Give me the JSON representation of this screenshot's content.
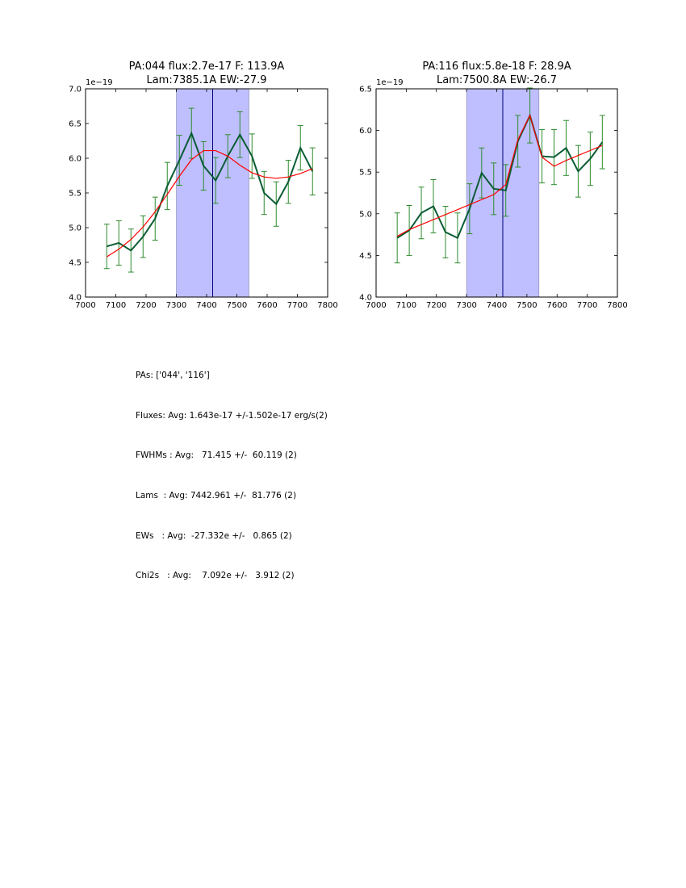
{
  "colors": {
    "data_line": "#0a5c34",
    "error_bar": "#2e8b2e",
    "model_line": "#ff0000",
    "shade": "#bfbfff",
    "center_line": "#000080"
  },
  "chart_data": [
    {
      "type": "line",
      "title": [
        "PA:044 flux:2.7e-17 F: 113.9A",
        "Lam:7385.1A EW:-27.9"
      ],
      "offset_label": "1e−19",
      "xlim": [
        7000,
        7800
      ],
      "ylim": [
        4.0,
        7.0
      ],
      "xticks": [
        7000,
        7100,
        7200,
        7300,
        7400,
        7500,
        7600,
        7700,
        7800
      ],
      "xtick_labels": [
        "7000",
        "7100",
        "7200",
        "7300",
        "7400",
        "7500",
        "7600",
        "7700",
        "7800"
      ],
      "yticks": [
        4.0,
        4.5,
        5.0,
        5.5,
        6.0,
        6.5,
        7.0
      ],
      "ytick_labels": [
        "4.0",
        "4.5",
        "5.0",
        "5.5",
        "6.0",
        "6.5",
        "7.0"
      ],
      "shaded_span": [
        7300,
        7540
      ],
      "center_line_x": 7420,
      "series": [
        {
          "name": "data",
          "x": [
            7070,
            7110,
            7150,
            7190,
            7230,
            7270,
            7310,
            7350,
            7390,
            7430,
            7470,
            7510,
            7550,
            7590,
            7630,
            7670,
            7710,
            7750
          ],
          "y": [
            4.73,
            4.78,
            4.67,
            4.87,
            5.13,
            5.6,
            5.97,
            6.36,
            5.89,
            5.68,
            6.03,
            6.34,
            6.03,
            5.5,
            5.34,
            5.66,
            6.15,
            5.81
          ],
          "err": [
            0.32,
            0.32,
            0.31,
            0.3,
            0.31,
            0.34,
            0.36,
            0.36,
            0.35,
            0.33,
            0.31,
            0.33,
            0.32,
            0.31,
            0.32,
            0.31,
            0.32,
            0.34
          ]
        },
        {
          "name": "model",
          "x": [
            7070,
            7110,
            7150,
            7190,
            7230,
            7270,
            7310,
            7350,
            7390,
            7430,
            7470,
            7510,
            7550,
            7590,
            7630,
            7670,
            7710,
            7750
          ],
          "y": [
            4.58,
            4.69,
            4.83,
            5.01,
            5.23,
            5.48,
            5.74,
            5.98,
            6.11,
            6.11,
            6.03,
            5.9,
            5.79,
            5.73,
            5.71,
            5.73,
            5.78,
            5.85
          ]
        }
      ]
    },
    {
      "type": "line",
      "title": [
        "PA:116 flux:5.8e-18 F: 28.9A",
        "Lam:7500.8A EW:-26.7"
      ],
      "offset_label": "1e−19",
      "xlim": [
        7000,
        7800
      ],
      "ylim": [
        4.0,
        6.5
      ],
      "xticks": [
        7000,
        7100,
        7200,
        7300,
        7400,
        7500,
        7600,
        7700,
        7800
      ],
      "xtick_labels": [
        "7000",
        "7100",
        "7200",
        "7300",
        "7400",
        "7500",
        "7600",
        "7700",
        "7800"
      ],
      "yticks": [
        4.0,
        4.5,
        5.0,
        5.5,
        6.0,
        6.5
      ],
      "ytick_labels": [
        "4.0",
        "4.5",
        "5.0",
        "5.5",
        "6.0",
        "6.5"
      ],
      "shaded_span": [
        7300,
        7540
      ],
      "center_line_x": 7420,
      "series": [
        {
          "name": "data",
          "x": [
            7070,
            7110,
            7150,
            7190,
            7230,
            7270,
            7310,
            7350,
            7390,
            7430,
            7470,
            7510,
            7550,
            7590,
            7630,
            7670,
            7710,
            7750
          ],
          "y": [
            4.71,
            4.8,
            5.01,
            5.09,
            4.78,
            4.71,
            5.06,
            5.49,
            5.3,
            5.28,
            5.87,
            6.18,
            5.69,
            5.68,
            5.79,
            5.51,
            5.66,
            5.86
          ],
          "err": [
            0.3,
            0.3,
            0.31,
            0.32,
            0.31,
            0.3,
            0.3,
            0.3,
            0.31,
            0.31,
            0.31,
            0.33,
            0.32,
            0.33,
            0.33,
            0.31,
            0.32,
            0.32
          ]
        },
        {
          "name": "model",
          "x": [
            7070,
            7110,
            7150,
            7190,
            7230,
            7270,
            7310,
            7350,
            7390,
            7430,
            7470,
            7510,
            7550,
            7590,
            7630,
            7670,
            7710,
            7750
          ],
          "y": [
            4.73,
            4.81,
            4.87,
            4.93,
            4.99,
            5.05,
            5.11,
            5.17,
            5.23,
            5.35,
            5.89,
            6.18,
            5.68,
            5.57,
            5.64,
            5.7,
            5.76,
            5.82
          ]
        }
      ]
    }
  ],
  "summary": [
    "PAs: ['044', '116']",
    "Fluxes: Avg: 1.643e-17 +/-1.502e-17 erg/s(2)",
    "FWHMs : Avg:   71.415 +/-  60.119 (2)",
    "Lams  : Avg: 7442.961 +/-  81.776 (2)",
    "EWs   : Avg:  -27.332e +/-   0.865 (2)",
    "Chi2s   : Avg:    7.092e +/-   3.912 (2)"
  ]
}
